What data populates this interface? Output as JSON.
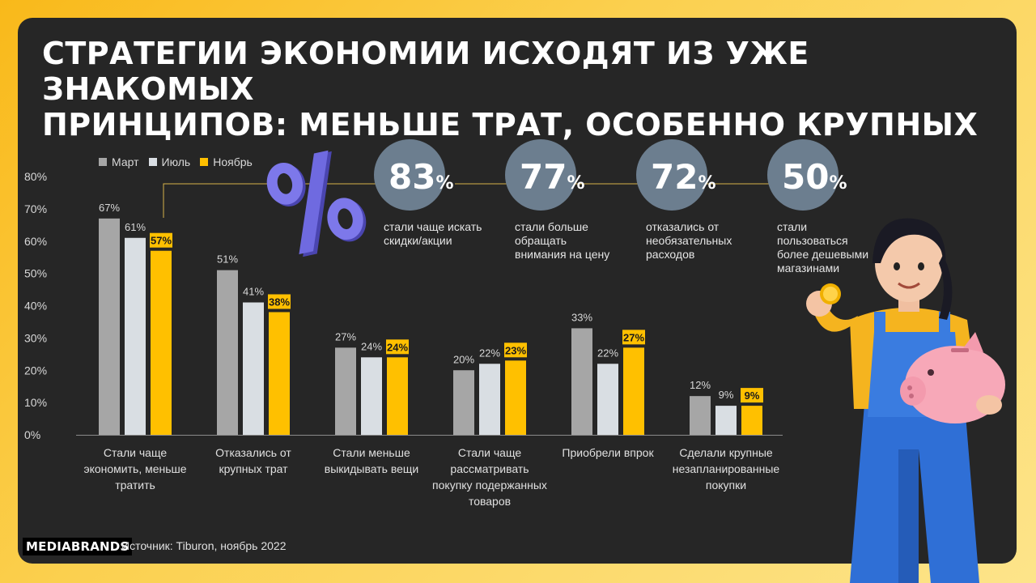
{
  "title_lines": [
    "СТРАТЕГИИ ЭКОНОМИИ ИСХОДЯТ ИЗ УЖЕ ЗНАКОМЫХ",
    "ПРИНЦИПОВ: МЕНЬШЕ ТРАТ, ОСОБЕННО КРУПНЫХ"
  ],
  "legend": [
    {
      "label": "Март",
      "color": "#a6a6a6"
    },
    {
      "label": "Июль",
      "color": "#d9dee3"
    },
    {
      "label": "Ноябрь",
      "color": "#ffc000"
    }
  ],
  "chart_data": {
    "type": "bar",
    "categories": [
      [
        "Стали чаще",
        "экономить, меньше",
        "тратить"
      ],
      [
        "Отказались от",
        "крупных трат"
      ],
      [
        "Стали меньше",
        "выкидывать вещи"
      ],
      [
        "Стали чаще",
        "рассматривать",
        "покупку подержанных",
        "товаров"
      ],
      [
        "Приобрели впрок"
      ],
      [
        "Сделали крупные",
        "незапланированные",
        "покупки"
      ]
    ],
    "series": [
      {
        "name": "Март",
        "values": [
          67,
          51,
          27,
          20,
          33,
          12
        ],
        "color": "#a6a6a6"
      },
      {
        "name": "Июль",
        "values": [
          61,
          41,
          24,
          22,
          22,
          9
        ],
        "color": "#d9dee3"
      },
      {
        "name": "Ноябрь",
        "values": [
          57,
          38,
          24,
          23,
          27,
          9
        ],
        "color": "#ffc000"
      }
    ],
    "value_suffix": "%",
    "yticks": [
      "0%",
      "10%",
      "20%",
      "30%",
      "40%",
      "50%",
      "60%",
      "70%",
      "80%"
    ],
    "ylim": [
      0,
      80
    ],
    "grid": false,
    "legend_position": "top-left"
  },
  "stats": [
    {
      "number": "83",
      "pct": "%",
      "label": [
        "стали чаще искать",
        "скидки/акции"
      ]
    },
    {
      "number": "77",
      "pct": "%",
      "label": [
        "стали больше",
        "обращать",
        "внимания на цену"
      ]
    },
    {
      "number": "72",
      "pct": "%",
      "label": [
        "отказались от",
        "необязательных",
        "расходов"
      ]
    },
    {
      "number": "50",
      "pct": "%",
      "label": [
        "стали",
        "пользоваться",
        "более дешевыми",
        "магазинами"
      ]
    }
  ],
  "footer": {
    "logo": "MEDIABRANDS",
    "source": "Источник: Tiburon, ноябрь 2022"
  },
  "colors": {
    "background": "#fbcf45",
    "card": "#262626",
    "accent": "#ffc000",
    "circle": "#6c7e8f"
  },
  "icons": [
    "percent-icon",
    "person-with-piggy-bank-illustration"
  ]
}
